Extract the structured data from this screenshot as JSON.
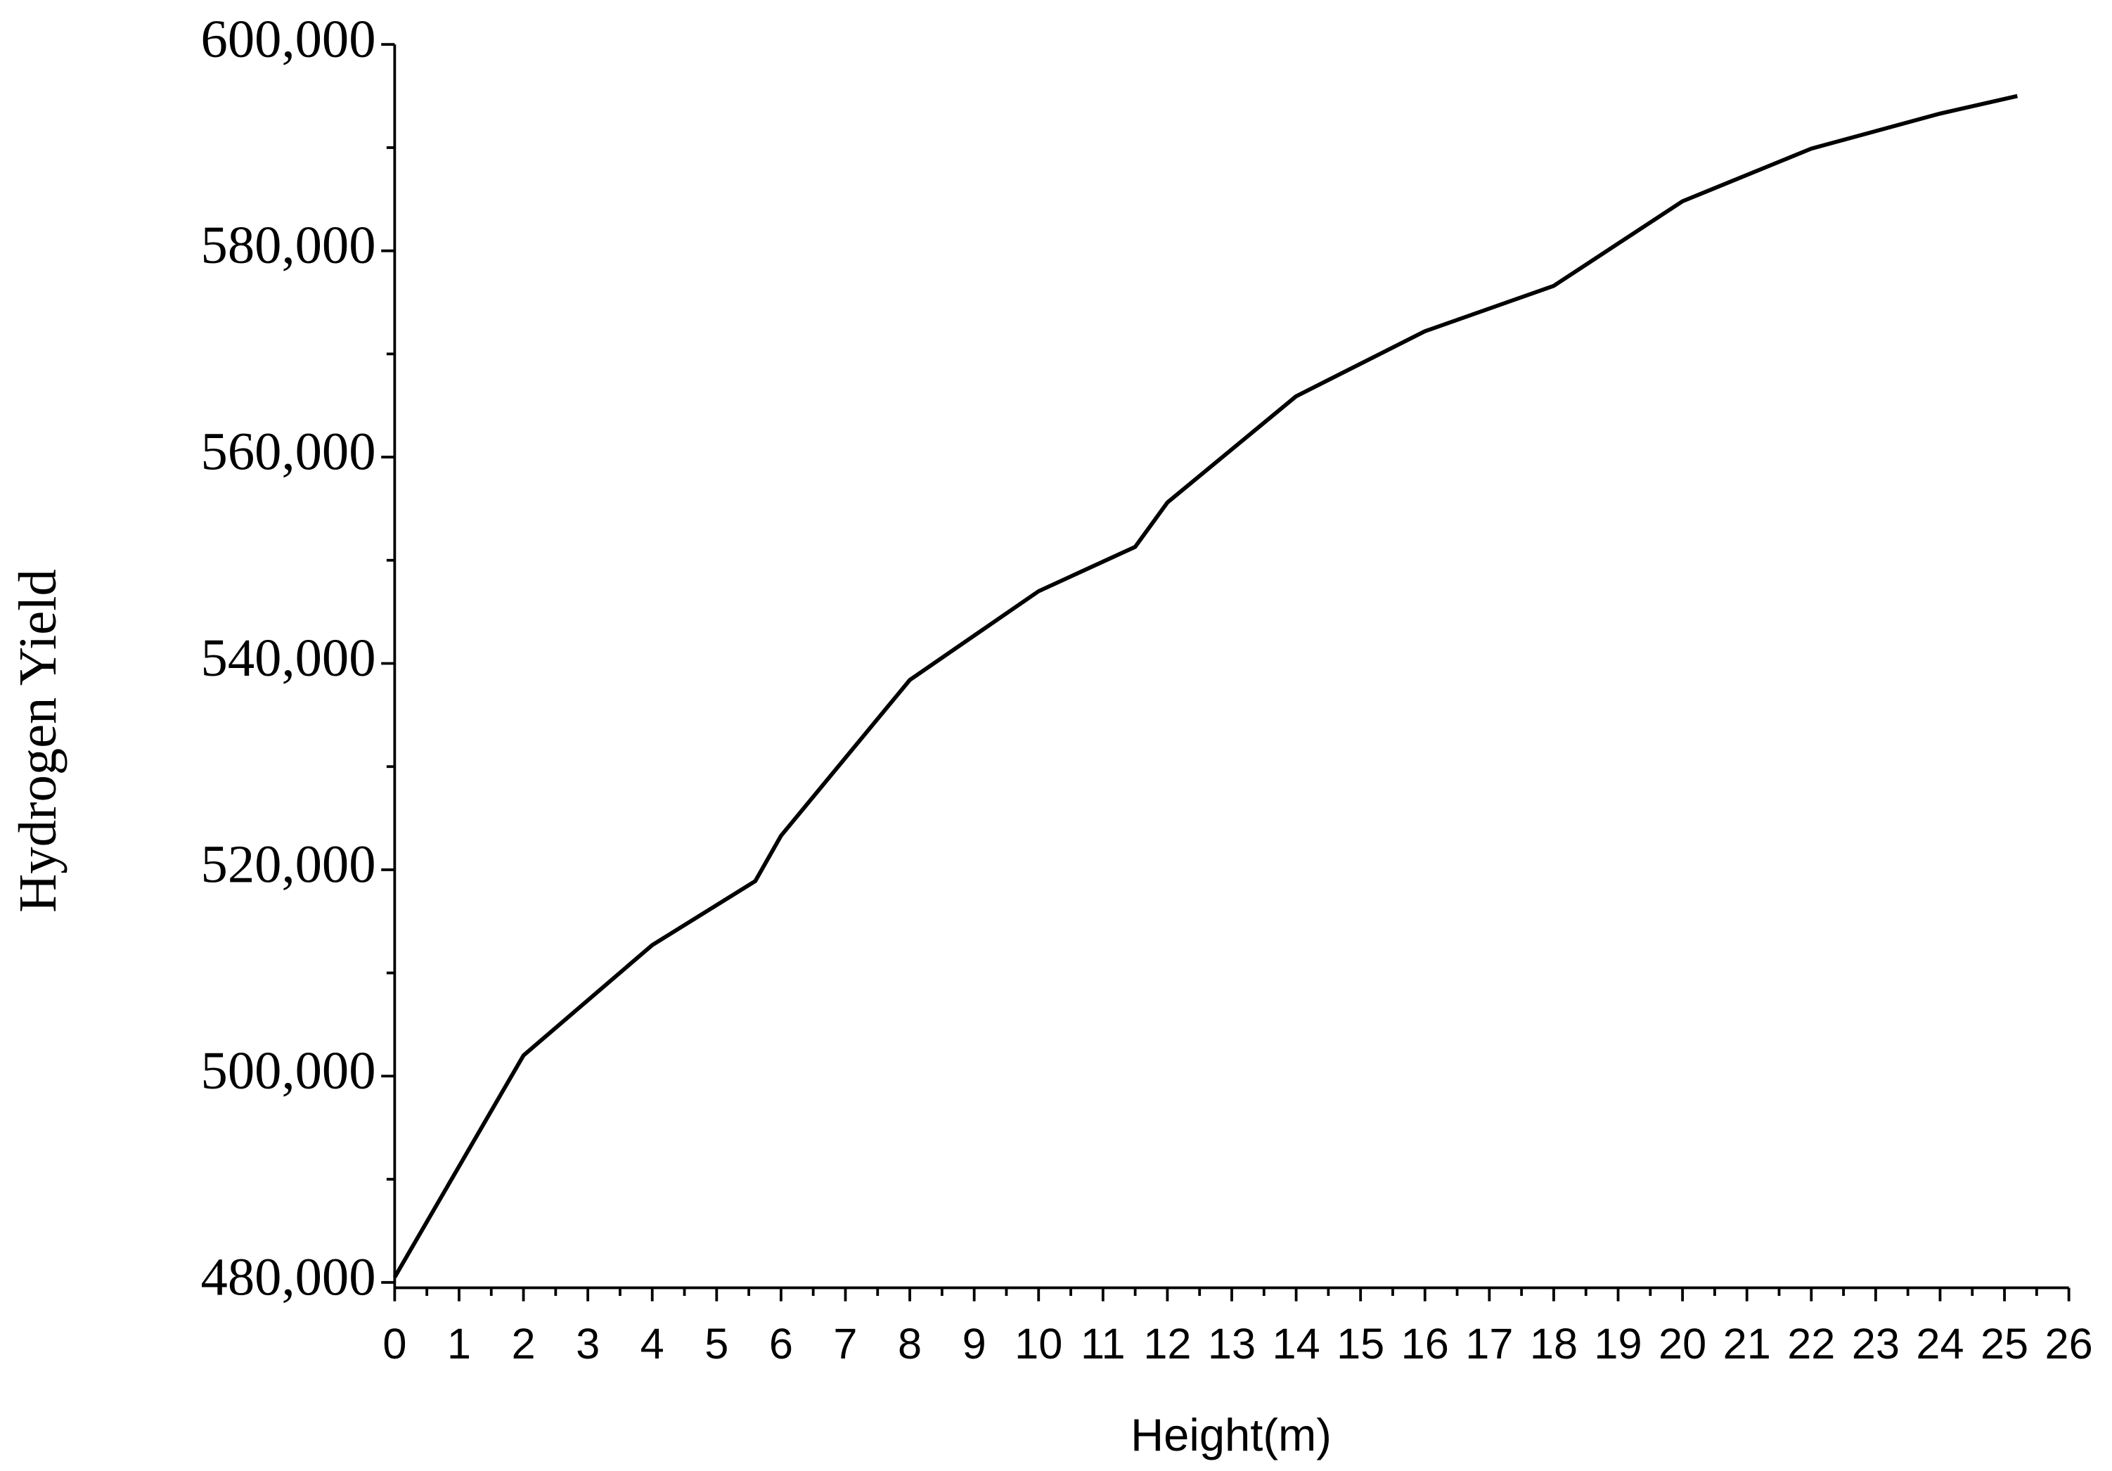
{
  "chart_data": {
    "type": "line",
    "x_label": "Height(m)",
    "y_label": "Hydrogen Yield",
    "series": [
      {
        "name": "Hydrogen Yield",
        "color": "#000000",
        "x": [
          0,
          2,
          4,
          5.6,
          6,
          8,
          10,
          11.5,
          12,
          14,
          16,
          18,
          20,
          22,
          24,
          25.2
        ],
        "values": [
          480500,
          502000,
          512700,
          518900,
          523300,
          538400,
          547000,
          551300,
          555600,
          565900,
          572200,
          576600,
          584800,
          589900,
          593300,
          595000
        ]
      }
    ],
    "xlim": [
      0,
      26
    ],
    "xticks": [
      0,
      1,
      2,
      3,
      4,
      5,
      6,
      7,
      8,
      9,
      10,
      11,
      12,
      13,
      14,
      15,
      16,
      17,
      18,
      19,
      20,
      21,
      22,
      23,
      24,
      25,
      26
    ],
    "ylim": [
      480000,
      600000
    ],
    "yticks": [
      {
        "value": 480000,
        "label": "480,000"
      },
      {
        "value": 500000,
        "label": "500,000"
      },
      {
        "value": 520000,
        "label": "520,000"
      },
      {
        "value": 540000,
        "label": "540,000"
      },
      {
        "value": 560000,
        "label": "560,000"
      },
      {
        "value": 580000,
        "label": "580,000"
      },
      {
        "value": 600000,
        "label": "600,000"
      }
    ],
    "grid": false
  }
}
